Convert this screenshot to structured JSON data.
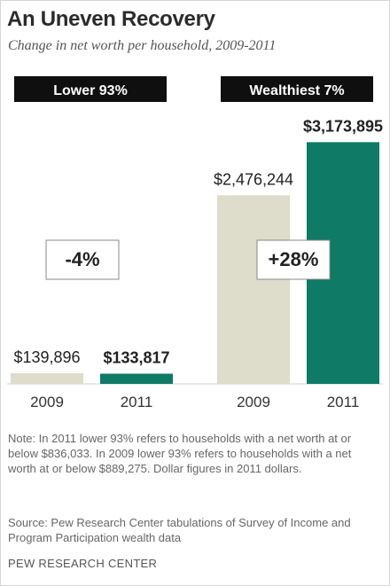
{
  "title": "An Uneven Recovery",
  "subtitle": "Change in net worth per household, 2009-2011",
  "chart_data": [
    {
      "type": "bar",
      "group_label": "Lower 93%",
      "categories": [
        "2009",
        "2011"
      ],
      "values": [
        139896,
        133817
      ],
      "value_labels": [
        "$139,896",
        "$133,817"
      ],
      "change_label": "-4%",
      "colors": [
        "#dedcca",
        "#0f7a66"
      ]
    },
    {
      "type": "bar",
      "group_label": "Wealthiest 7%",
      "categories": [
        "2009",
        "2011"
      ],
      "values": [
        2476244,
        3173895
      ],
      "value_labels": [
        "$2,476,244",
        "$3,173,895"
      ],
      "change_label": "+28%",
      "colors": [
        "#dedcca",
        "#0f7a66"
      ]
    }
  ],
  "note": "Note: In 2011 lower 93% refers to households with a net worth at or below $836,033. In 2009 lower 93% refers to households with a net worth at or below $889,275. Dollar figures in 2011 dollars.",
  "source": "Source: Pew Research Center tabulations of Survey of Income and Program Participation wealth data",
  "org": "PEW RESEARCH CENTER"
}
